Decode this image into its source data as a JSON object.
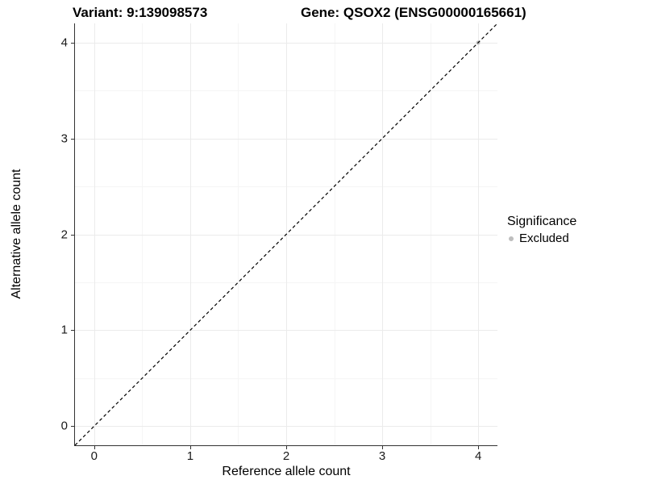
{
  "header": {
    "variant_title": "Variant: 9:139098573",
    "gene_title": "Gene: QSOX2 (ENSG00000165661)"
  },
  "chart_data": {
    "type": "scatter",
    "xlabel": "Reference allele count",
    "ylabel": "Alternative allele count",
    "xlim": [
      -0.2,
      4.2
    ],
    "ylim": [
      -0.2,
      4.2
    ],
    "xticks": [
      0,
      1,
      2,
      3,
      4
    ],
    "yticks": [
      0,
      1,
      2,
      3,
      4
    ],
    "xminor": [
      0.5,
      1.5,
      2.5,
      3.5
    ],
    "yminor": [
      0.5,
      1.5,
      2.5,
      3.5
    ],
    "grid": true,
    "points": [
      {
        "x": 4,
        "y": 4,
        "series": "Excluded"
      }
    ],
    "series": [
      {
        "name": "Excluded",
        "color": "#bebebe"
      }
    ],
    "abline": {
      "slope": 1,
      "intercept": 0,
      "linetype": "dashed",
      "color": "#000000"
    },
    "legend": {
      "title": "Significance",
      "position": "right",
      "items": [
        {
          "label": "Excluded",
          "color": "#bebebe"
        }
      ]
    }
  },
  "colors": {
    "major_grid": "#ebebeb",
    "minor_grid": "#f5f5f5",
    "axis_line": "#333333",
    "point": "#bebebe",
    "dashed_line": "#000000"
  }
}
